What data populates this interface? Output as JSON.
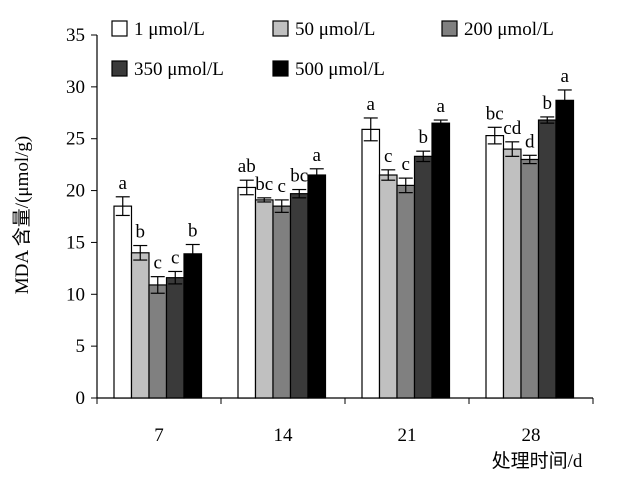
{
  "chart_data": {
    "type": "bar",
    "title": "",
    "xlabel": "处理时间/d",
    "ylabel": "MDA 含量/(μmol/g)",
    "ylim": [
      0,
      35
    ],
    "yticks": [
      0,
      5,
      10,
      15,
      20,
      25,
      30,
      35
    ],
    "grid": false,
    "legend_position": "top",
    "categories": [
      "7",
      "14",
      "21",
      "28"
    ],
    "series": [
      {
        "name": "1 μmol/L",
        "color": "#ffffff",
        "values": [
          18.5,
          20.3,
          25.9,
          25.3
        ],
        "errors": [
          0.9,
          0.7,
          1.1,
          0.8
        ],
        "labels": [
          "a",
          "ab",
          "a",
          "bc"
        ]
      },
      {
        "name": "50 μmol/L",
        "color": "#c0c0c0",
        "values": [
          14.0,
          19.1,
          21.5,
          24.0
        ],
        "errors": [
          0.7,
          0.2,
          0.5,
          0.7
        ],
        "labels": [
          "b",
          "bc",
          "c",
          "cd"
        ]
      },
      {
        "name": "200 μmol/L",
        "color": "#808080",
        "values": [
          10.9,
          18.5,
          20.5,
          23.0
        ],
        "errors": [
          0.8,
          0.6,
          0.7,
          0.4
        ],
        "labels": [
          "c",
          "c",
          "c",
          "d"
        ]
      },
      {
        "name": "350 μmol/L",
        "color": "#3a3a3a",
        "values": [
          11.6,
          19.7,
          23.3,
          26.8
        ],
        "errors": [
          0.6,
          0.4,
          0.5,
          0.3
        ],
        "labels": [
          "c",
          "bc",
          "b",
          "b"
        ]
      },
      {
        "name": "500 μmol/L",
        "color": "#000000",
        "values": [
          13.9,
          21.5,
          26.5,
          28.7
        ],
        "errors": [
          0.9,
          0.6,
          0.3,
          1.0
        ],
        "labels": [
          "b",
          "a",
          "a",
          "a"
        ]
      }
    ]
  }
}
